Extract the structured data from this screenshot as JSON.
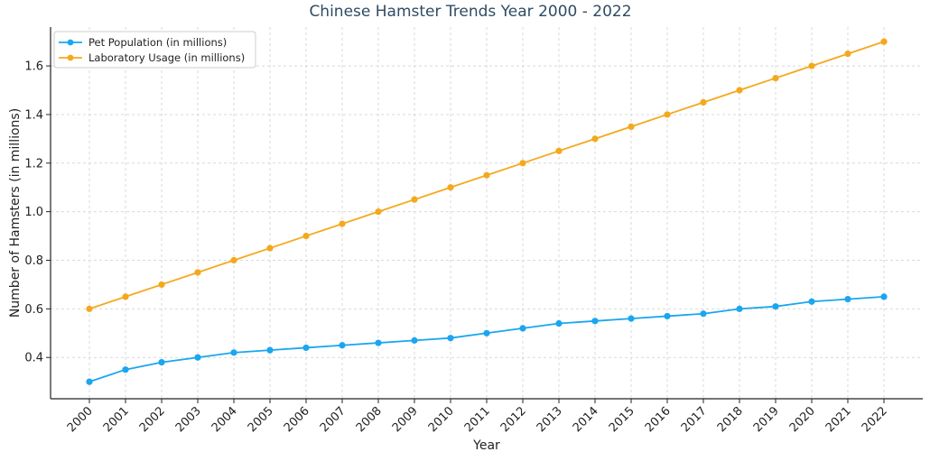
{
  "chart_data": {
    "type": "line",
    "title": "Chinese Hamster Trends Year 2000 - 2022",
    "xlabel": "Year",
    "ylabel": "Number of Hamsters (in millions)",
    "ylim": [
      0.23,
      1.76
    ],
    "yticks": [
      0.4,
      0.6,
      0.8,
      1.0,
      1.2,
      1.4,
      1.6
    ],
    "ytick_labels": [
      "0.4",
      "0.6",
      "0.8",
      "1.0",
      "1.2",
      "1.4",
      "1.6"
    ],
    "grid": true,
    "legend_position": "top-left",
    "categories": [
      "2000",
      "2001",
      "2002",
      "2003",
      "2004",
      "2005",
      "2006",
      "2007",
      "2008",
      "2009",
      "2010",
      "2011",
      "2012",
      "2013",
      "2014",
      "2015",
      "2016",
      "2017",
      "2018",
      "2019",
      "2020",
      "2021",
      "2022"
    ],
    "series": [
      {
        "name": "Pet Population (in millions)",
        "color": "#1aa6f0",
        "values": [
          0.3,
          0.35,
          0.38,
          0.4,
          0.42,
          0.43,
          0.44,
          0.45,
          0.46,
          0.47,
          0.48,
          0.5,
          0.52,
          0.54,
          0.55,
          0.56,
          0.57,
          0.58,
          0.6,
          0.61,
          0.63,
          0.64,
          0.65
        ]
      },
      {
        "name": "Laboratory Usage (in millions)",
        "color": "#f5a81c",
        "values": [
          0.6,
          0.65,
          0.7,
          0.75,
          0.8,
          0.85,
          0.9,
          0.95,
          1.0,
          1.05,
          1.1,
          1.15,
          1.2,
          1.25,
          1.3,
          1.35,
          1.4,
          1.45,
          1.5,
          1.55,
          1.6,
          1.65,
          1.7
        ]
      }
    ]
  }
}
